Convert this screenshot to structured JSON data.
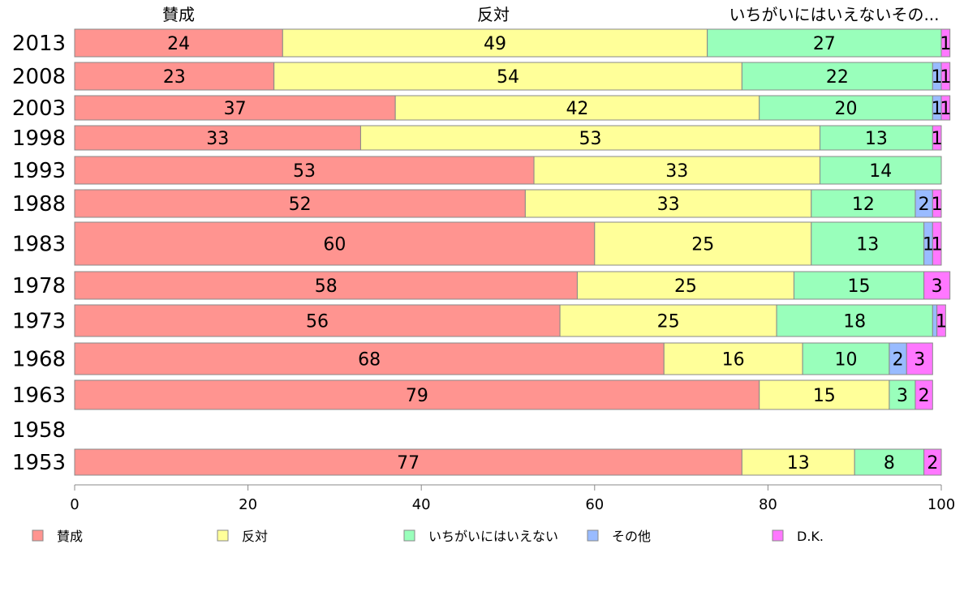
{
  "chart_data": {
    "type": "bar",
    "orientation": "horizontal",
    "stacked": true,
    "categories": [
      "2013",
      "2008",
      "2003",
      "1998",
      "1993",
      "1988",
      "1983",
      "1978",
      "1973",
      "1968",
      "1963",
      "1958",
      "1953"
    ],
    "series": [
      {
        "name": "賛成",
        "color": "#ff9490",
        "values": [
          24,
          23,
          37,
          33,
          53,
          52,
          60,
          58,
          56,
          68,
          79,
          null,
          77
        ]
      },
      {
        "name": "反対",
        "color": "#ffff99",
        "values": [
          49,
          54,
          42,
          53,
          33,
          33,
          25,
          25,
          25,
          16,
          15,
          null,
          13
        ]
      },
      {
        "name": "いちがいにはいえない",
        "color": "#99ffbb",
        "values": [
          27,
          22,
          20,
          13,
          14,
          12,
          13,
          15,
          18,
          10,
          3,
          null,
          8
        ]
      },
      {
        "name": "その他",
        "color": "#99bbff",
        "values": [
          0,
          1,
          1,
          0,
          0,
          2,
          1,
          0,
          0.5,
          2,
          0,
          null,
          0
        ]
      },
      {
        "name": "D.K.",
        "color": "#ff77ff",
        "values": [
          1,
          1,
          1,
          1,
          0,
          1,
          1,
          3,
          1,
          3,
          2,
          null,
          2
        ]
      }
    ],
    "column_headers": [
      "賛成",
      "反対",
      "いちがいにはいえないその..."
    ],
    "xlim": [
      0,
      100
    ],
    "xticks": [
      0,
      20,
      40,
      60,
      80,
      100
    ],
    "grid": false,
    "legend_position": "bottom"
  }
}
